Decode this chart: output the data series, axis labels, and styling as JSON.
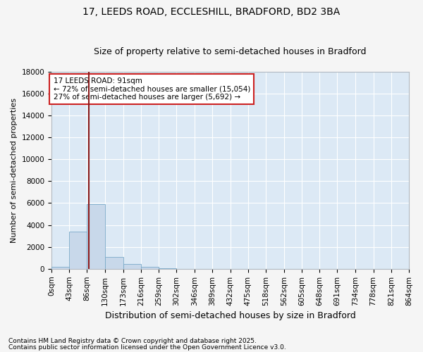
{
  "title_line1": "17, LEEDS ROAD, ECCLESHILL, BRADFORD, BD2 3BA",
  "title_line2": "Size of property relative to semi-detached houses in Bradford",
  "xlabel": "Distribution of semi-detached houses by size in Bradford",
  "ylabel": "Number of semi-detached properties",
  "annotation_line1": "17 LEEDS ROAD: 91sqm",
  "annotation_line2": "← 72% of semi-detached houses are smaller (15,054)",
  "annotation_line3": "27% of semi-detached houses are larger (5,692) →",
  "subject_size": 91,
  "bar_color": "#c8d8ea",
  "bar_edge_color": "#7aaac8",
  "vline_color": "#8b1a1a",
  "annotation_box_edge_color": "#cc2222",
  "background_color": "#dce9f5",
  "plot_bg_color": "#dce9f5",
  "fig_bg_color": "#f5f5f5",
  "grid_color": "#ffffff",
  "bin_edges": [
    0,
    43,
    86,
    130,
    173,
    216,
    259,
    302,
    346,
    389,
    432,
    475,
    518,
    562,
    605,
    648,
    691,
    734,
    778,
    821,
    864
  ],
  "bar_heights": [
    200,
    3400,
    5900,
    1050,
    450,
    200,
    80,
    20,
    5,
    2,
    0,
    0,
    0,
    0,
    0,
    0,
    0,
    0,
    0,
    0
  ],
  "ylim": [
    0,
    18000
  ],
  "yticks": [
    0,
    2000,
    4000,
    6000,
    8000,
    10000,
    12000,
    14000,
    16000,
    18000
  ],
  "footnote_line1": "Contains HM Land Registry data © Crown copyright and database right 2025.",
  "footnote_line2": "Contains public sector information licensed under the Open Government Licence v3.0.",
  "title_fontsize": 10,
  "subtitle_fontsize": 9,
  "ylabel_fontsize": 8,
  "xlabel_fontsize": 9,
  "tick_fontsize": 7.5,
  "annot_fontsize": 7.5,
  "footnote_fontsize": 6.5
}
